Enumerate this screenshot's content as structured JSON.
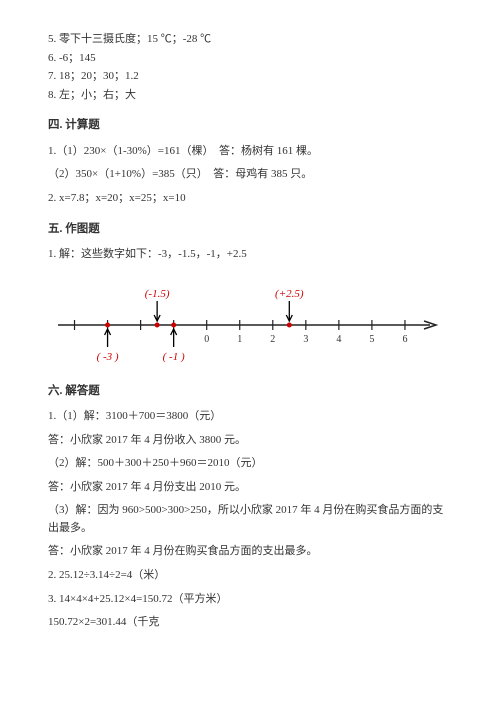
{
  "top_lines": {
    "l5": "5. 零下十三摄氏度；15 ℃；-28 ℃",
    "l6": "6. -6；145",
    "l7": "7. 18；20；30；1.2",
    "l8": "8. 左；小；右；大"
  },
  "section4": {
    "title": "四. 计算题",
    "q1a": "1.（1）230×（1-30%）=161（棵）　答：杨树有 161 棵。",
    "q1b": "（2）350×（1+10%）=385（只）　答：母鸡有 385 只。",
    "q2": "2. x=7.8；x=20；x=25；x=10"
  },
  "section5": {
    "title": "五. 作图题",
    "q1": "1. 解：这些数字如下：-3，-1.5，-1，+2.5"
  },
  "numberline": {
    "ticks": [
      "0",
      "1",
      "2",
      "3",
      "4",
      "5",
      "6"
    ],
    "arrows": [
      {
        "x": -3,
        "label": "( -3 )",
        "above": false,
        "text_color": "#c00"
      },
      {
        "x": -1.5,
        "label": "(-1.5)",
        "above": true,
        "text_color": "#c00"
      },
      {
        "x": -1,
        "label": "( -1 )",
        "above": false,
        "text_color": "#c00"
      },
      {
        "x": 2.5,
        "label": "(+2.5)",
        "above": true,
        "text_color": "#c00"
      }
    ],
    "line_color": "#222",
    "dot_color": "#c00",
    "label_fontsize": 11,
    "tick_fontsize": 10
  },
  "section6": {
    "title": "六. 解答题",
    "q1_1": "1.（1）解：3100＋700＝3800（元）",
    "q1_1a": "答：小欣家 2017 年 4 月份收入 3800 元。",
    "q1_2": "（2）解：500＋300＋250＋960＝2010（元）",
    "q1_2a": "答：小欣家 2017 年 4 月份支出 2010 元。",
    "q1_3": "（3）解：因为 960>500>300>250，所以小欣家 2017 年 4 月份在购买食品方面的支出最多。",
    "q1_3a": "答：小欣家 2017 年 4 月份在购买食品方面的支出最多。",
    "q2": "2. 25.12÷3.14÷2=4（米）",
    "q3a": "3. 14×4×4+25.12×4=150.72（平方米）",
    "q3b": "150.72×2=301.44（千克"
  }
}
